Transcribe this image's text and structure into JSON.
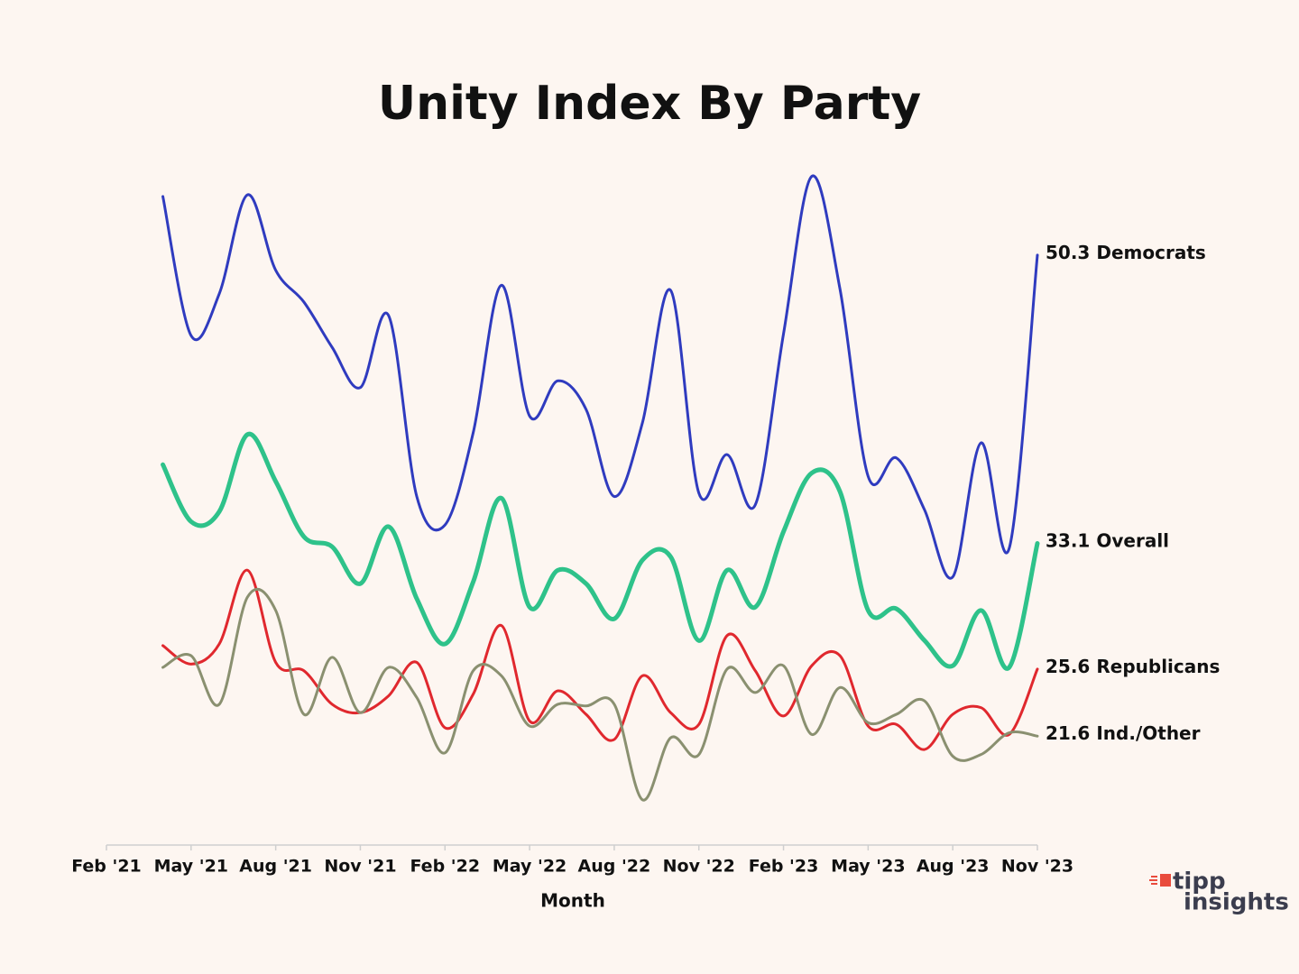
{
  "chart_data": {
    "type": "line",
    "title": "Unity Index By Party",
    "x_label": "Month",
    "x": [
      "2021-04",
      "2021-05",
      "2021-06",
      "2021-07",
      "2021-08",
      "2021-09",
      "2021-10",
      "2021-11",
      "2021-12",
      "2022-01",
      "2022-02",
      "2022-03",
      "2022-04",
      "2022-05",
      "2022-06",
      "2022-07",
      "2022-08",
      "2022-09",
      "2022-10",
      "2022-11",
      "2022-12",
      "2023-01",
      "2023-02",
      "2023-03",
      "2023-04",
      "2023-05",
      "2023-06",
      "2023-07",
      "2023-08",
      "2023-09",
      "2023-10",
      "2023-11"
    ],
    "series": [
      {
        "name": "Democrats",
        "color": "#2f3bbf",
        "values": [
          53.8,
          45.5,
          48.0,
          53.9,
          49.4,
          47.5,
          44.8,
          42.4,
          46.7,
          35.9,
          34.2,
          39.7,
          48.5,
          40.7,
          42.8,
          41.1,
          35.9,
          40.3,
          48.2,
          36.1,
          38.4,
          35.4,
          45.6,
          55.0,
          48.3,
          37.1,
          38.2,
          35.1,
          31.1,
          39.1,
          32.8,
          50.3
        ]
      },
      {
        "name": "Overall",
        "color": "#2ec28a",
        "values": [
          37.8,
          34.4,
          35.0,
          39.6,
          36.8,
          33.5,
          32.9,
          30.7,
          34.1,
          29.8,
          27.1,
          30.8,
          35.8,
          29.3,
          31.5,
          30.7,
          28.6,
          32.1,
          32.3,
          27.3,
          31.5,
          29.3,
          33.8,
          37.3,
          36.2,
          29.1,
          29.2,
          27.3,
          25.8,
          29.1,
          25.7,
          33.1
        ]
      },
      {
        "name": "Republicans",
        "color": "#e0282e",
        "values": [
          27.0,
          25.9,
          27.1,
          31.5,
          26.0,
          25.5,
          23.5,
          23.0,
          24.0,
          26.0,
          22.1,
          24.1,
          28.2,
          22.5,
          24.3,
          22.9,
          21.4,
          25.2,
          23.0,
          22.3,
          27.6,
          25.5,
          22.8,
          25.8,
          26.4,
          22.2,
          22.3,
          20.8,
          22.9,
          23.3,
          21.7,
          25.6
        ]
      },
      {
        "name": "Ind./Other",
        "color": "#8a9070",
        "values": [
          25.7,
          26.4,
          23.5,
          29.9,
          29.1,
          22.9,
          26.3,
          23.0,
          25.7,
          23.9,
          20.6,
          25.5,
          25.2,
          22.2,
          23.5,
          23.4,
          23.5,
          17.8,
          21.5,
          20.5,
          25.6,
          24.2,
          25.8,
          21.7,
          24.5,
          22.4,
          22.9,
          23.7,
          20.4,
          20.5,
          21.8,
          21.6
        ]
      }
    ],
    "xlim": [
      "2021-02",
      "2023-11"
    ],
    "xticks": [
      {
        "value": "2021-02",
        "label": "Feb '21"
      },
      {
        "value": "2021-05",
        "label": "May '21"
      },
      {
        "value": "2021-08",
        "label": "Aug '21"
      },
      {
        "value": "2021-11",
        "label": "Nov '21"
      },
      {
        "value": "2022-02",
        "label": "Feb '22"
      },
      {
        "value": "2022-05",
        "label": "May '22"
      },
      {
        "value": "2022-08",
        "label": "Aug '22"
      },
      {
        "value": "2022-11",
        "label": "Nov '22"
      },
      {
        "value": "2023-02",
        "label": "Feb '23"
      },
      {
        "value": "2023-05",
        "label": "May '23"
      },
      {
        "value": "2023-08",
        "label": "Aug '23"
      },
      {
        "value": "2023-11",
        "label": "Nov '23"
      }
    ],
    "ylim": [
      15.1,
      56
    ],
    "smooth": true
  },
  "logo": {
    "line1": "tipp",
    "line2": "insights"
  }
}
